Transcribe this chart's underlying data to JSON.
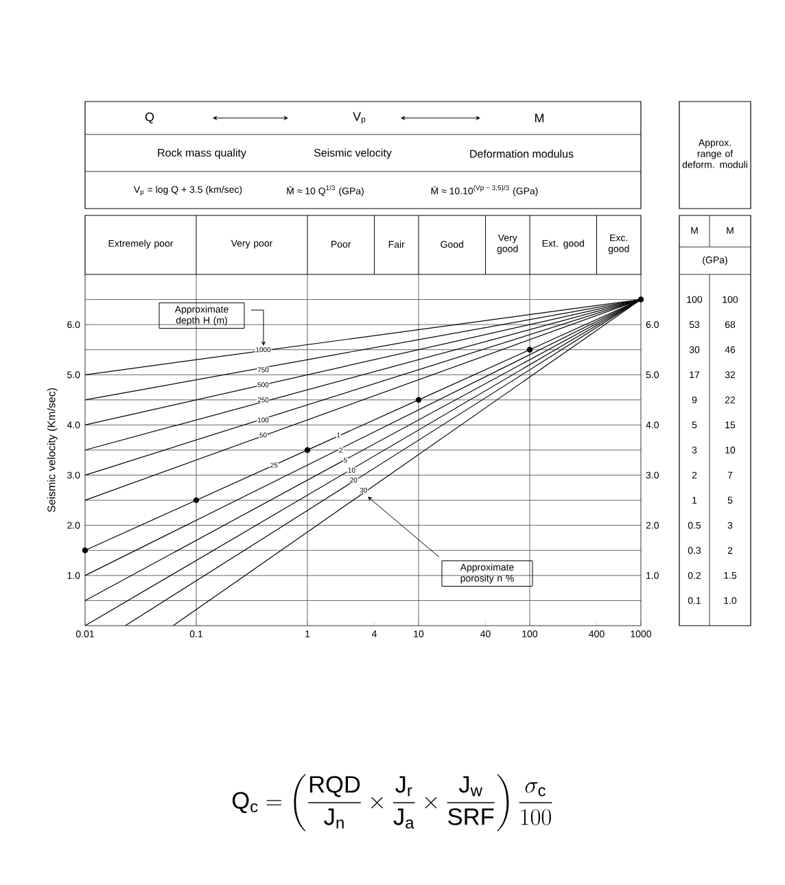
{
  "chart_data": {
    "type": "line",
    "ylabel": "Seismic velocity (Km/sec)",
    "log": "x",
    "grid": true,
    "marker": "none",
    "line_style": "solid",
    "xlim": [
      0.01,
      1000
    ],
    "ylim": [
      0,
      7
    ],
    "xticks": [
      0.01,
      0.1,
      1,
      4,
      10,
      40,
      100,
      400,
      1000
    ],
    "yticks": [
      {
        "value": 0.5,
        "label": null
      },
      {
        "value": 1,
        "label": "1.0"
      },
      {
        "value": 1.5,
        "label": null
      },
      {
        "value": 2,
        "label": "2.0"
      },
      {
        "value": 2.5,
        "label": null
      },
      {
        "value": 3,
        "label": "3.0"
      },
      {
        "value": 3.5,
        "label": null
      },
      {
        "value": 4,
        "label": "4.0"
      },
      {
        "value": 4.5,
        "label": null
      },
      {
        "value": 5,
        "label": "5.0"
      },
      {
        "value": 5.5,
        "label": null
      },
      {
        "value": 6,
        "label": "6.0"
      },
      {
        "value": 6.5,
        "label": null
      }
    ],
    "y2lim": [
      0,
      7
    ],
    "y2ticks": [
      {
        "value": 1,
        "label": "1.0"
      },
      {
        "value": 2,
        "label": "2.0"
      },
      {
        "value": 3,
        "label": "3.0"
      },
      {
        "value": 4,
        "label": "4.0"
      },
      {
        "value": 5,
        "label": "5.0"
      },
      {
        "value": 6,
        "label": "6.0"
      }
    ],
    "series": [
      {
        "color": "#000000",
        "x": [
          0.01,
          1000
        ],
        "values": [
          5.0,
          6.5
        ]
      },
      {
        "color": "#000000",
        "x": [
          0.01,
          1000
        ],
        "values": [
          4.5,
          6.5
        ]
      },
      {
        "color": "#000000",
        "x": [
          0.01,
          1000
        ],
        "values": [
          4.0,
          6.5
        ]
      },
      {
        "color": "#000000",
        "x": [
          0.01,
          1000
        ],
        "values": [
          3.5,
          6.5
        ]
      },
      {
        "color": "#000000",
        "x": [
          0.01,
          1000
        ],
        "values": [
          3.0,
          6.5
        ]
      },
      {
        "color": "#000000",
        "x": [
          0.01,
          1000
        ],
        "values": [
          2.5,
          6.5
        ]
      },
      {
        "color": "#000000",
        "marker": "circle",
        "x": [
          0.01,
          0.1,
          1,
          10,
          100,
          1000
        ],
        "values": [
          1.5,
          2.5,
          3.5,
          4.5,
          5.5,
          6.5
        ]
      },
      {
        "color": "#000000",
        "x": [
          0.01,
          1000
        ],
        "values": [
          1.0,
          6.5
        ]
      },
      {
        "color": "#000000",
        "x": [
          0.01,
          1000
        ],
        "values": [
          0.5,
          6.5
        ]
      },
      {
        "color": "#000000",
        "x": [
          0.01,
          1000
        ],
        "values": [
          0,
          6.5
        ]
      },
      {
        "color": "#000000",
        "x": [
          0.023,
          1000
        ],
        "values": [
          0,
          6.5
        ]
      },
      {
        "color": "#000000",
        "x": [
          0.062,
          1000
        ],
        "values": [
          0,
          6.5
        ]
      }
    ],
    "annotations": [
      "Q",
      "V$_{p}$",
      "M",
      "Rock mass quality",
      "Seismic velocity",
      "Deformation modulus",
      "V$_{p}$ = log Q + 3.5 (km/sec)",
      "M̄ ≈ 10 Q$^{1/3}$ (GPa)",
      "M̄ ≈ 10.10$^{(Vp − 3.5)/3}$ (GPa)",
      "Approx. range of deform. moduli",
      "(GPa)",
      "Approximate depth H (m)",
      "Approximate porosity n %",
      "\\mathrm{Q}_{\\mathrm{c}}=\\left(\\frac{\\mathrm{RQD}}{\\mathrm{J}_{\\mathrm{n}}}\\times\\frac{\\mathrm{J}_{\\mathrm{r}}}{\\mathrm{J}_{\\mathrm{a}}}\\times\\frac{\\mathrm{J}_{\\mathrm{w}}}{\\mathrm{SRF}}\\right)\\frac{\\sigma_{\\mathrm{c}}}{100}",
      "Extremely poor",
      "Very poor",
      "Poor",
      "Fair",
      "Good",
      "Very good",
      "Ext. good",
      "Exc. good",
      "M",
      "M",
      "100",
      "100",
      "53",
      "68",
      "30",
      "46",
      "17",
      "32",
      "9",
      "22",
      "5",
      "15",
      "3",
      "10",
      "2",
      "7",
      "1",
      "5",
      "0.5",
      "3",
      "0.3",
      "2",
      "0.2",
      "1.5",
      "0.1",
      "1.0",
      {
        "text": "1000",
        "x": 0.4,
        "y": 5.5
      },
      {
        "text": "750",
        "x": 0.4,
        "y": 5.1
      },
      {
        "text": "500",
        "x": 0.4,
        "y": 4.8
      },
      {
        "text": "250",
        "x": 0.4,
        "y": 4.5
      },
      {
        "text": "100",
        "x": 0.4,
        "y": 4.1
      },
      {
        "text": "50",
        "x": 0.4,
        "y": 3.8
      },
      {
        "text": "25",
        "x": 0.5,
        "y": 3.2
      },
      {
        "text": "1",
        "x": 1.9,
        "y": 3.8
      },
      {
        "text": "2",
        "x": 2,
        "y": 3.5
      },
      {
        "text": "5",
        "x": 2.2,
        "y": 3.3
      },
      {
        "text": "10",
        "x": 2.5,
        "y": 3.1
      },
      {
        "text": "20",
        "x": 2.6,
        "y": 2.9
      },
      {
        "text": "30",
        "x": 3.2,
        "y": 2.7
      }
    ]
  }
}
